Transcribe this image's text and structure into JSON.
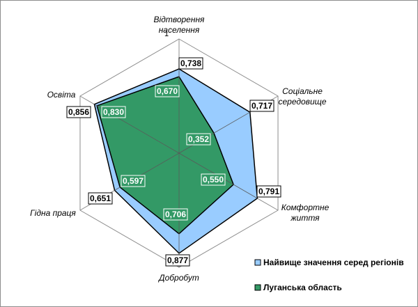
{
  "chart_data": {
    "type": "radar",
    "categories": [
      [
        "Відтворення",
        "населення"
      ],
      [
        "Соціальне",
        "середовище"
      ],
      [
        "Комфортне",
        "життя"
      ],
      [
        "Добробут"
      ],
      [
        "Гідна праця"
      ],
      [
        "Освіта"
      ]
    ],
    "rlim": [
      0,
      1
    ],
    "ticks": [
      "0",
      "1"
    ],
    "series": [
      {
        "name": "Найвище значення серед регіонів",
        "values": [
          0.738,
          0.717,
          0.791,
          0.877,
          0.651,
          0.856
        ],
        "labels": [
          "0,738",
          "0,717",
          "0,791",
          "0,877",
          "0,651",
          "0,856"
        ],
        "color": "#99ccff"
      },
      {
        "name": "Луганська область",
        "values": [
          0.67,
          0.352,
          0.55,
          0.706,
          0.597,
          0.83
        ],
        "labels": [
          "0,670",
          "0,352",
          "0,550",
          "0,706",
          "0,597",
          "0,830"
        ],
        "color": "#339966"
      }
    ],
    "grid": true,
    "legend": "bottom-right"
  }
}
